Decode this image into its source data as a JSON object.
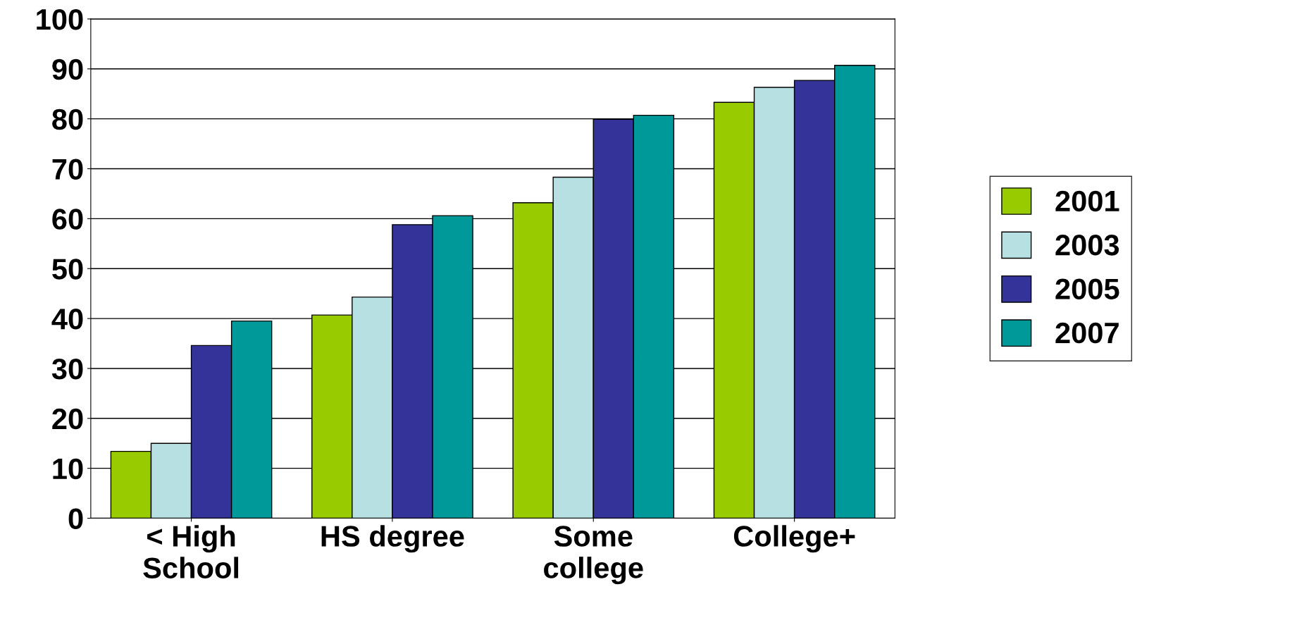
{
  "chart_data": {
    "type": "bar",
    "categories": [
      "< High\nSchool",
      "HS degree",
      "Some\ncollege",
      "College+"
    ],
    "series": [
      {
        "name": "2001",
        "color": "#99cc00",
        "values": [
          13.4,
          40.7,
          63.2,
          83.3
        ]
      },
      {
        "name": "2003",
        "color": "#b7e0e3",
        "values": [
          15.0,
          44.3,
          68.3,
          86.3
        ]
      },
      {
        "name": "2005",
        "color": "#333399",
        "values": [
          34.6,
          58.8,
          79.9,
          87.7
        ]
      },
      {
        "name": "2007",
        "color": "#009999",
        "values": [
          39.5,
          60.6,
          80.7,
          90.7
        ]
      }
    ],
    "ylim": [
      0,
      100
    ],
    "yticks": [
      0,
      10,
      20,
      30,
      40,
      50,
      60,
      70,
      80,
      90,
      100
    ],
    "grid": "y",
    "legend": "right"
  }
}
